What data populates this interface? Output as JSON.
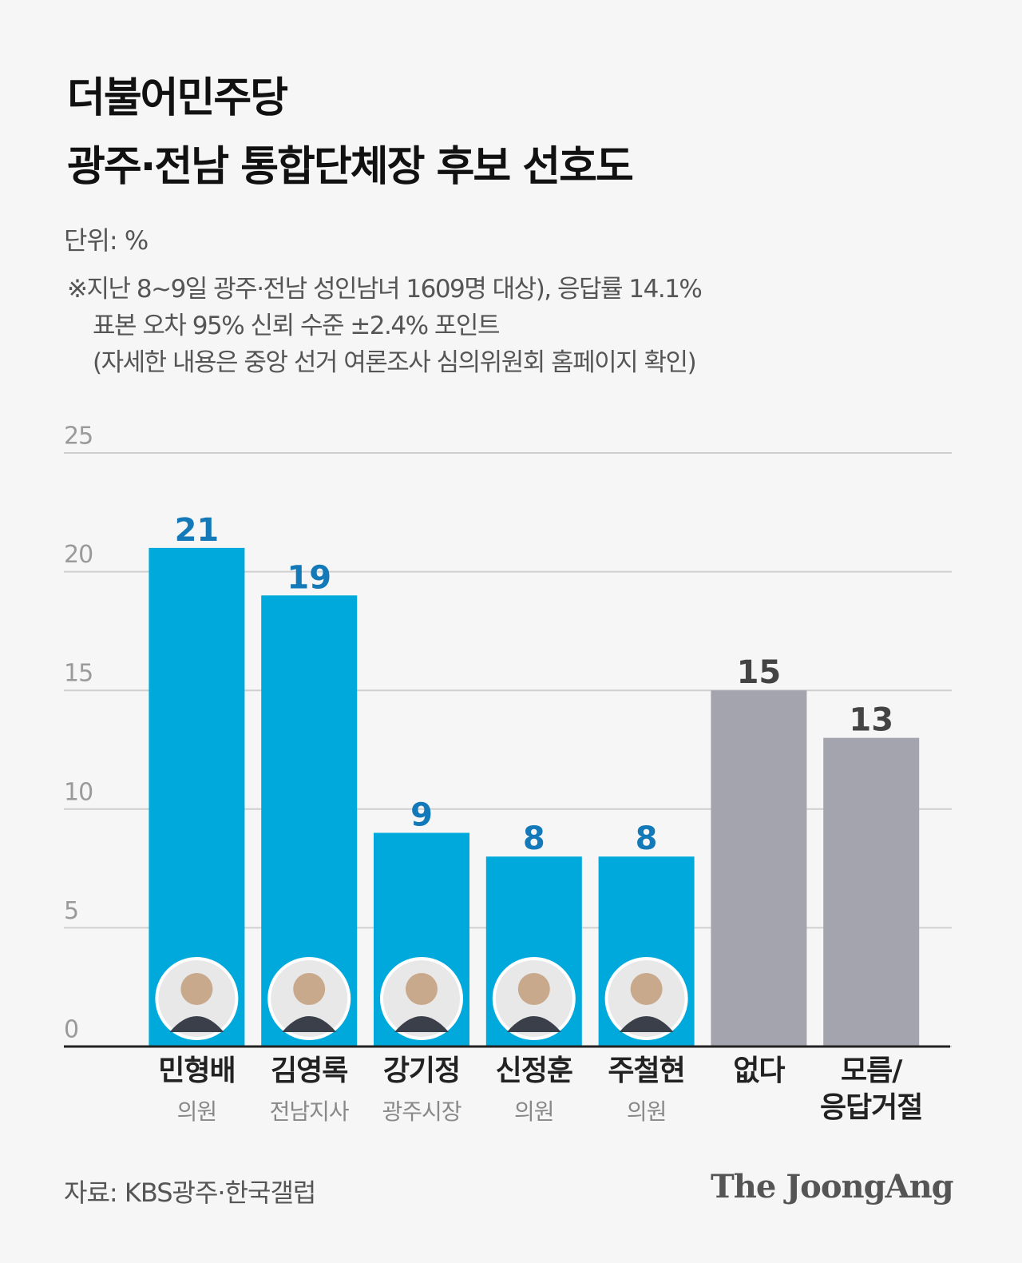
{
  "chart_data": {
    "type": "bar",
    "title": [
      "더불어민주당",
      "광주·전남 통합단체장 후보 선호도"
    ],
    "unit": "단위: %",
    "notes": [
      "※지난 8~9일 광주·전남 성인남녀 1609명 대상), 응답률 14.1%",
      "표본 오차 95% 신뢰 수준 ±2.4% 포인트",
      "(자세한 내용은 중앙 선거 여론조사 심의위원회 홈페이지 확인)"
    ],
    "categories": [
      "민형배",
      "김영록",
      "강기정",
      "신정훈",
      "주철현",
      "없다",
      "모름/\n응답거절"
    ],
    "roles": [
      "의원",
      "전남지사",
      "광주시장",
      "의원",
      "의원",
      null,
      null
    ],
    "values": [
      21,
      19,
      9,
      8,
      8,
      15,
      13
    ],
    "colors": [
      "#00a9dc",
      "#00a9dc",
      "#00a9dc",
      "#00a9dc",
      "#00a9dc",
      "#a4a4ae",
      "#a4a4ae"
    ],
    "label_colors": [
      "#1479b8",
      "#1479b8",
      "#1479b8",
      "#1479b8",
      "#1479b8",
      "#444444",
      "#444444"
    ],
    "ylim": [
      0,
      25
    ],
    "yticks": [
      0,
      5,
      10,
      15,
      20,
      25
    ],
    "grid": true,
    "source": "자료: KBS광주·한국갤럽",
    "logo": "The JoongAng"
  }
}
